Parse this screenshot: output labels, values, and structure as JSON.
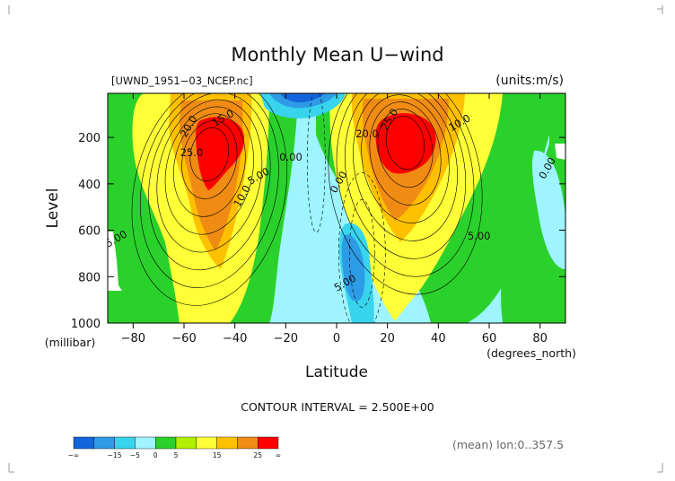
{
  "chart_data": {
    "type": "heatmap",
    "title": "Monthly Mean U−wind",
    "subtitle_left": "[UWND_1951−03_NCEP.nc]",
    "subtitle_right": "(units:m/s)",
    "xlabel": "Latitude",
    "x_units": "(degrees_north)",
    "ylabel": "Level",
    "y_units": "(millibar)",
    "xlim": [
      -90,
      90
    ],
    "ylim": [
      1000,
      10
    ],
    "x_ticks": [
      -80,
      -60,
      -40,
      -20,
      0,
      20,
      40,
      60,
      80
    ],
    "y_ticks": [
      200,
      400,
      600,
      800,
      1000
    ],
    "contour_interval_text": "CONTOUR INTERVAL = 2.500E+00",
    "footnote": "(mean) lon:0..357.5",
    "contour_labels": [
      "20.0",
      "15.0",
      "25.0",
      "10.0",
      "5.00",
      "0.00",
      "0.00",
      "5.00",
      "20.0",
      "25.0",
      "10.0",
      "5.00",
      "0.00",
      "5.00"
    ],
    "jets": [
      {
        "lat": -50,
        "level": 250,
        "peak_ms": 27
      },
      {
        "lat": 27,
        "level": 200,
        "peak_ms": 28
      }
    ],
    "colorbar": {
      "colors": [
        "#1464dc",
        "#2e9be6",
        "#38d4ee",
        "#9ef4ff",
        "#2bd12b",
        "#b0f000",
        "#ffff38",
        "#ffc000",
        "#f08c14",
        "#ff0000"
      ],
      "labels": [
        "−∞",
        "−15",
        "−5",
        "0",
        "5",
        "15",
        "25",
        "∞"
      ]
    }
  }
}
